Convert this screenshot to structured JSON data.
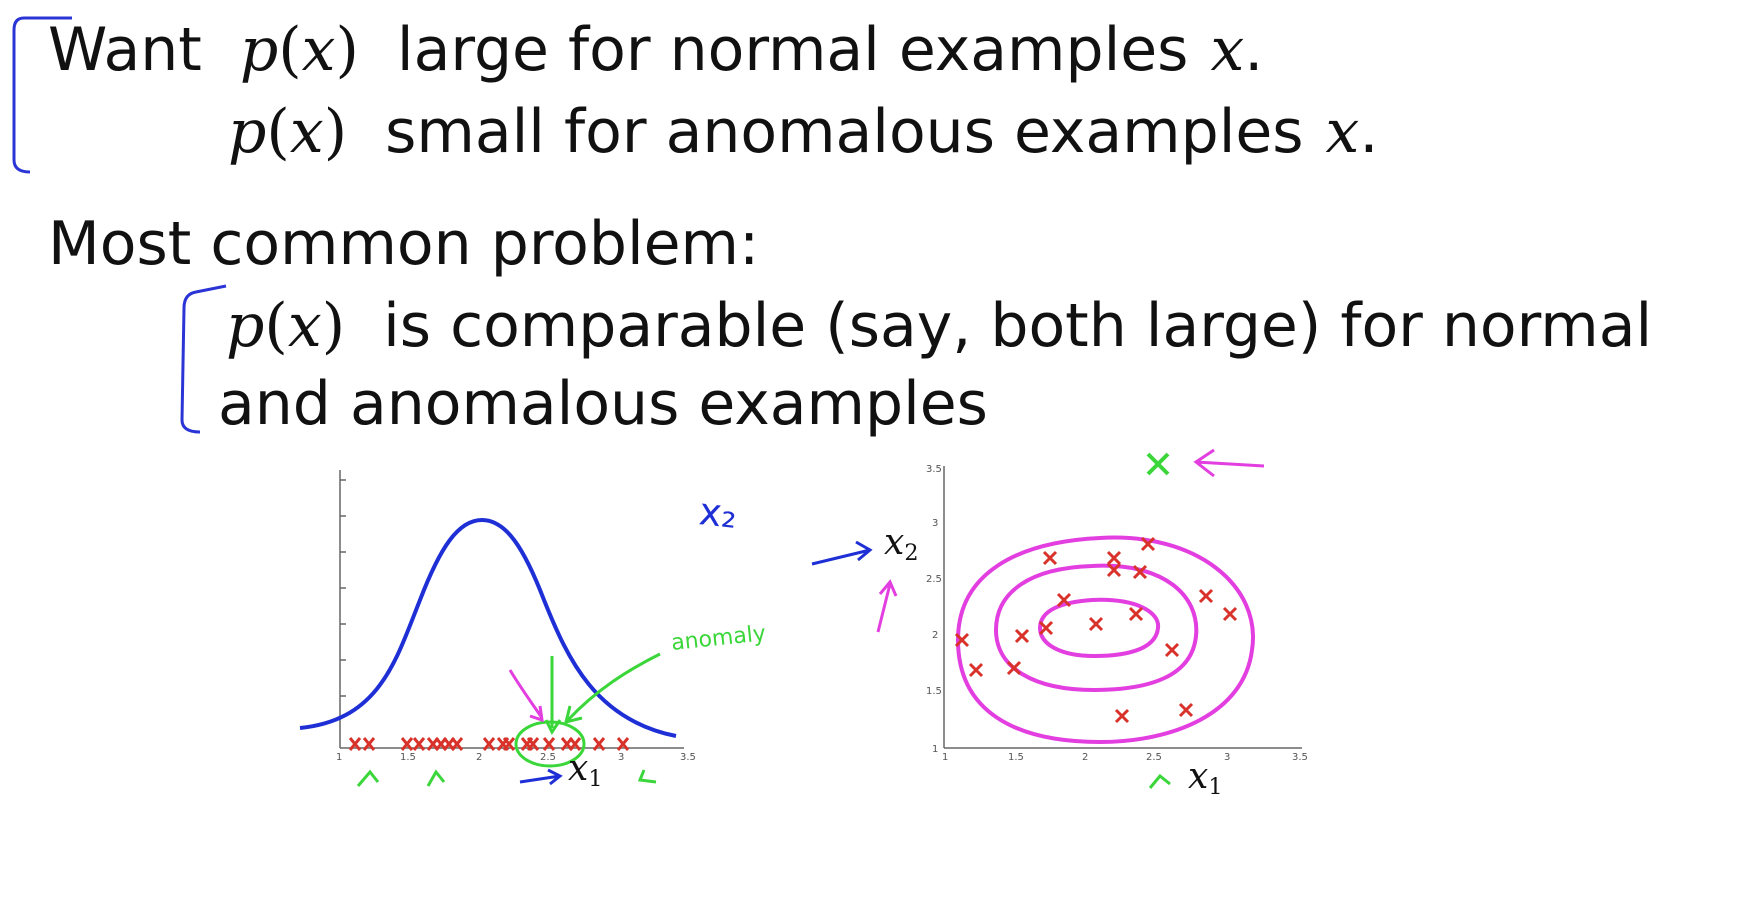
{
  "slide": {
    "line1": {
      "word": "Want",
      "fn": "p",
      "var": "x",
      "text": "large for normal examples",
      "end_var": "x",
      "end_punct": "."
    },
    "line2": {
      "fn": "p",
      "var": "x",
      "text": "small for anomalous examples",
      "end_var": "x",
      "end_punct": "."
    },
    "heading": "Most common problem:",
    "line3": {
      "fn": "p",
      "var": "x",
      "text": "is comparable (say, both large) for normal"
    },
    "line4": "and anomalous examples"
  },
  "left_plot": {
    "x_axis_var": "x",
    "x_axis_sub": "1",
    "x_ticks": [
      "1",
      "1.5",
      "2",
      "2.5",
      "3",
      "3.5"
    ],
    "handwritten_x2": "x₂",
    "handwritten_anomaly": "anomaly"
  },
  "right_plot": {
    "x_axis_var": "x",
    "x_axis_sub": "1",
    "y_axis_var": "x",
    "y_axis_sub": "2",
    "x_ticks": [
      "1",
      "1.5",
      "2",
      "2.5",
      "3",
      "3.5"
    ],
    "y_ticks": [
      "1",
      "1.5",
      "2",
      "2.5",
      "3",
      "3.5"
    ]
  },
  "colors": {
    "bracket_blue": "#2b35d6",
    "curve_blue": "#1f2fd6",
    "cross_red": "#d8322a",
    "ink_green": "#3ad63a",
    "ink_magenta": "#e23ee0"
  }
}
